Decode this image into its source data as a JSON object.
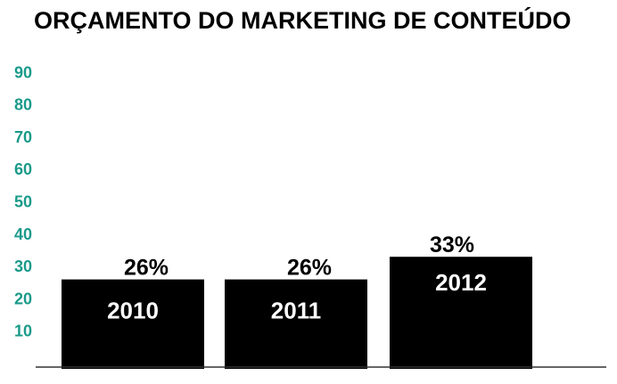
{
  "chart_data": {
    "type": "bar",
    "title": "ORÇAMENTO DO MARKETING DE CONTEÚDO",
    "xlabel": "",
    "ylabel": "",
    "categories": [
      "2010",
      "2011",
      "2012"
    ],
    "values": [
      26,
      26,
      33
    ],
    "data_labels": [
      "26%",
      "26%",
      "33%"
    ],
    "yticks": [
      "10",
      "20",
      "30",
      "40",
      "50",
      "60",
      "70",
      "80",
      "90"
    ],
    "ylim": [
      0,
      95
    ],
    "grid": false,
    "legend": "none",
    "colors": {
      "bar": "#000000",
      "tick_label": "#1a9a8a",
      "category_label": "#ffffff",
      "axis": "#333333"
    }
  }
}
